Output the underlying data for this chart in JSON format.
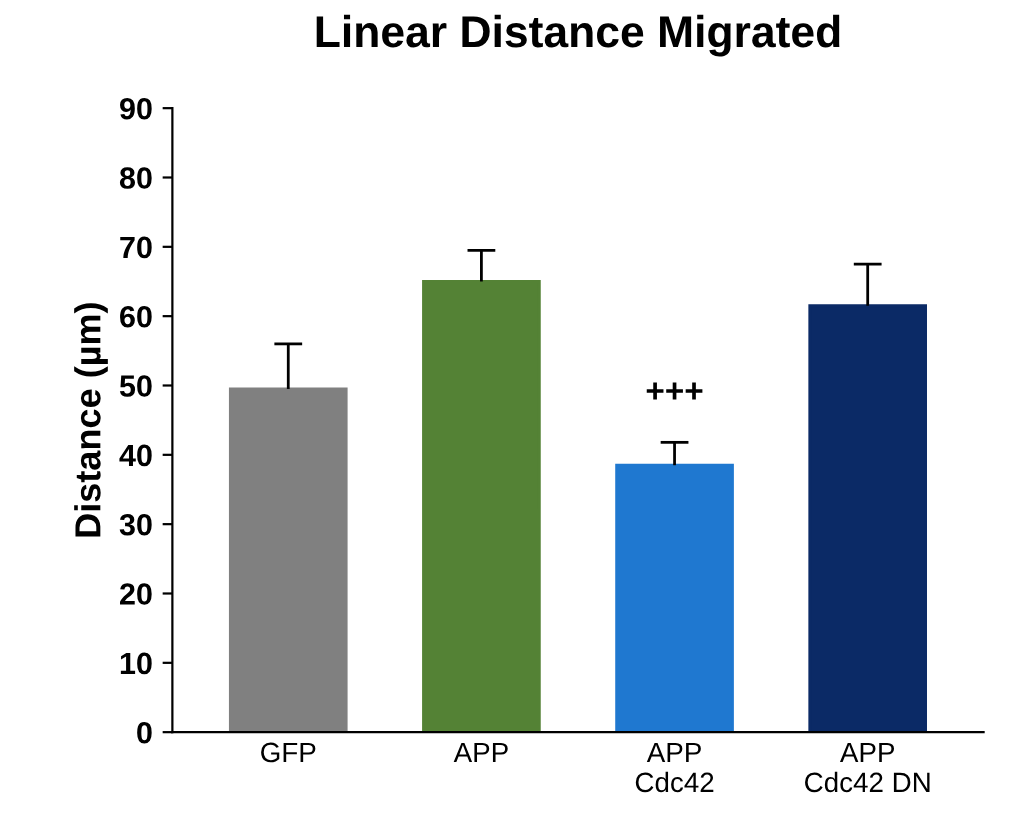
{
  "chart_data": {
    "type": "bar",
    "title": "Linear Distance Migrated",
    "ylabel": "Distance (µm)",
    "categories": [
      "GFP",
      "APP",
      "APP\nCdc42",
      "APP\nCdc42 DN"
    ],
    "values": [
      49.5,
      65,
      38.5,
      61.5
    ],
    "colors": [
      "#808080",
      "#548235",
      "#1f78d0",
      "#0b2a66"
    ],
    "errors": [
      [
        49.5,
        56
      ],
      [
        65,
        69.5
      ],
      [
        38.5,
        41.8
      ],
      [
        61.5,
        67.5
      ]
    ],
    "annotations": [
      "+++"
    ],
    "ylim": [
      0,
      90
    ],
    "yticks": [
      0,
      10,
      20,
      30,
      40,
      50,
      60,
      70,
      80,
      90
    ],
    "grid": false,
    "legend": false
  }
}
